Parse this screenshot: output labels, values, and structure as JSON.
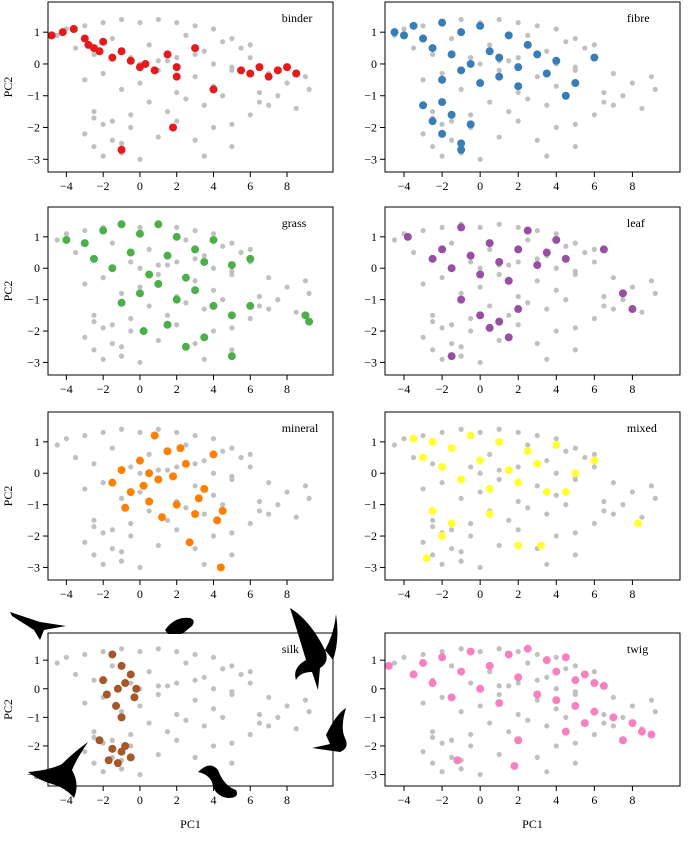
{
  "background_points": {
    "color": "#c0c0c0",
    "x": [
      -4.5,
      -4,
      -3.5,
      -3,
      -2.5,
      -2,
      -1.5,
      -1,
      -0.5,
      0,
      0.5,
      1,
      1.5,
      2,
      2.5,
      3,
      3.5,
      4,
      4.5,
      5,
      5.5,
      6,
      -3,
      -2,
      -1,
      0,
      1,
      2,
      3,
      4,
      5,
      -2.5,
      -1.5,
      -0.5,
      0.5,
      1.5,
      2.5,
      3.5,
      4.5,
      -3,
      -2.5,
      -2,
      -1.5,
      -1,
      -2,
      -1,
      -2.5,
      -0.5,
      0,
      1,
      2,
      3,
      4,
      5,
      6,
      7,
      8,
      9,
      6.5,
      7.5,
      8.5,
      9.2,
      5,
      6,
      7,
      3,
      4,
      5,
      2,
      1,
      0,
      -1,
      3.5,
      6.5
    ],
    "y": [
      0.9,
      1.1,
      0.5,
      1.2,
      0.3,
      1.3,
      0.8,
      1.4,
      0.2,
      1.3,
      0.6,
      1.4,
      0.1,
      1.3,
      0.9,
      1.2,
      0.4,
      1.1,
      0.7,
      0.8,
      0.5,
      0.6,
      -0.5,
      -0.3,
      -0.8,
      -0.6,
      -0.2,
      -0.9,
      -0.4,
      -0.7,
      -0.2,
      -1.5,
      -1.8,
      -2.0,
      -1.2,
      -1.5,
      -1.1,
      -1.3,
      -1.0,
      -2.2,
      -2.6,
      -1.9,
      -2.4,
      -2.8,
      -2.9,
      -2.5,
      -1.7,
      -1.6,
      0.0,
      0.1,
      0.2,
      0.3,
      0.0,
      -0.1,
      0.2,
      -0.3,
      -0.6,
      -0.4,
      -1.2,
      -1.0,
      -1.4,
      -0.8,
      -1.9,
      -1.6,
      -1.3,
      -2.4,
      -2.0,
      -2.6,
      -1.8,
      -2.3,
      -3.0,
      -2.8,
      -2.9,
      -0.9
    ]
  },
  "chart_data": [
    {
      "type": "scatter",
      "ylabel": "PC2",
      "xlim": [
        -5,
        10.5
      ],
      "ylim": [
        -3.4,
        1.95
      ],
      "xticks": [
        {
          "value": -4,
          "label": "−4"
        },
        {
          "value": -2,
          "label": "−2"
        },
        0,
        2,
        4,
        6,
        8
      ],
      "yticks": [
        1,
        0,
        {
          "value": -1,
          "label": "−1"
        },
        {
          "value": -2,
          "label": "−2"
        },
        {
          "value": -3,
          "label": "−3"
        }
      ],
      "series": [
        {
          "name": "binder",
          "color": "#e41a1c",
          "x": [
            -4.8,
            -4.2,
            -3.6,
            -3,
            -2.8,
            -2.5,
            -2.2,
            -2,
            -1.5,
            -1,
            -0.5,
            0,
            0.3,
            0.8,
            1.5,
            2,
            3,
            4,
            5.5,
            6,
            6.5,
            7,
            7.5,
            8,
            8.5,
            2,
            -1,
            1.8
          ],
          "y": [
            0.9,
            1.0,
            1.1,
            0.8,
            0.6,
            0.5,
            0.4,
            0.7,
            0.2,
            0.4,
            0.1,
            -0.1,
            0.0,
            -0.2,
            0.3,
            -0.4,
            0.5,
            -0.8,
            -0.2,
            -0.3,
            -0.1,
            -0.4,
            -0.2,
            -0.1,
            -0.3,
            -0.1,
            -2.7,
            -2.0
          ]
        }
      ]
    },
    {
      "type": "scatter",
      "xlim": [
        -5,
        10.5
      ],
      "ylim": [
        -3.4,
        1.95
      ],
      "xticks": [
        {
          "value": -4,
          "label": "−4"
        },
        {
          "value": -2,
          "label": "−2"
        },
        0,
        2,
        4,
        6,
        8
      ],
      "yticks": [
        1,
        0,
        {
          "value": -1,
          "label": "−1"
        },
        {
          "value": -2,
          "label": "−2"
        },
        {
          "value": -3,
          "label": "−3"
        }
      ],
      "series": [
        {
          "name": "fibre",
          "color": "#377eb8",
          "x": [
            -4.5,
            -4,
            -3.5,
            -3,
            -2.5,
            -2,
            -1.5,
            -1,
            -0.5,
            0,
            0.5,
            1,
            1.5,
            2,
            2.5,
            3,
            3.5,
            4,
            -2,
            -1,
            0,
            1,
            2,
            -3,
            -2.5,
            -2,
            -1.5,
            -1,
            -0.5,
            -2,
            -1,
            4.5,
            5,
            6
          ],
          "y": [
            1.0,
            0.9,
            1.2,
            0.8,
            0.5,
            1.3,
            0.3,
            1.0,
            0.0,
            1.2,
            0.4,
            0.2,
            0.9,
            -0.1,
            0.6,
            0.3,
            -0.3,
            0.1,
            -0.5,
            -0.2,
            -0.6,
            -0.4,
            -0.7,
            -1.3,
            -1.8,
            -2.2,
            -1.6,
            -2.5,
            -1.9,
            -1.2,
            -2.7,
            -1.0,
            -0.6,
            0.2
          ]
        }
      ]
    },
    {
      "type": "scatter",
      "ylabel": "PC2",
      "xlim": [
        -5,
        10.5
      ],
      "ylim": [
        -3.4,
        1.95
      ],
      "xticks": [
        {
          "value": -4,
          "label": "−4"
        },
        {
          "value": -2,
          "label": "−2"
        },
        0,
        2,
        4,
        6,
        8
      ],
      "yticks": [
        1,
        0,
        {
          "value": -1,
          "label": "−1"
        },
        {
          "value": -2,
          "label": "−2"
        },
        {
          "value": -3,
          "label": "−3"
        }
      ],
      "series": [
        {
          "name": "grass",
          "color": "#4daf4a",
          "x": [
            -4,
            -3,
            -2.5,
            -2,
            -1.5,
            -1,
            -0.5,
            0,
            0.5,
            1,
            1.5,
            2,
            2.5,
            3,
            3.5,
            4,
            5,
            6,
            0,
            1,
            2,
            3,
            4,
            5,
            6,
            1.5,
            2.5,
            3.5,
            5,
            9,
            9.2,
            -1,
            0.2
          ],
          "y": [
            0.9,
            0.8,
            0.3,
            1.2,
            0.0,
            1.4,
            0.5,
            1.1,
            -0.2,
            1.4,
            0.4,
            1.0,
            -0.3,
            0.6,
            0.2,
            0.9,
            0.1,
            0.3,
            -0.8,
            -0.5,
            -1.0,
            -0.7,
            -1.2,
            -1.5,
            -1.2,
            -1.8,
            -2.5,
            -2.2,
            -2.8,
            -1.5,
            -1.7,
            -1.1,
            -2.0
          ]
        }
      ]
    },
    {
      "type": "scatter",
      "xlim": [
        -5,
        10.5
      ],
      "ylim": [
        -3.4,
        1.95
      ],
      "xticks": [
        {
          "value": -4,
          "label": "−4"
        },
        {
          "value": -2,
          "label": "−2"
        },
        0,
        2,
        4,
        6,
        8
      ],
      "yticks": [
        1,
        0,
        {
          "value": -1,
          "label": "−1"
        },
        {
          "value": -2,
          "label": "−2"
        },
        {
          "value": -3,
          "label": "−3"
        }
      ],
      "series": [
        {
          "name": "leaf",
          "color": "#984ea3",
          "x": [
            -3.8,
            -2.5,
            -2,
            -1.5,
            -1,
            -0.5,
            0,
            0.5,
            1,
            1.5,
            2,
            2.5,
            3,
            3.5,
            4,
            4.5,
            6.5,
            7.5,
            8,
            -1,
            0,
            1,
            1.5,
            -1.5,
            2,
            0.5
          ],
          "y": [
            1.0,
            0.3,
            0.6,
            0.0,
            1.3,
            0.4,
            -0.2,
            0.8,
            0.2,
            -0.4,
            0.6,
            1.2,
            0.1,
            0.5,
            0.9,
            0.3,
            0.6,
            -0.8,
            -1.3,
            -1.0,
            -1.5,
            -1.7,
            -2.2,
            -2.8,
            -1.3,
            -1.9
          ]
        }
      ]
    },
    {
      "type": "scatter",
      "ylabel": "PC2",
      "xlim": [
        -5,
        10.5
      ],
      "ylim": [
        -3.4,
        1.95
      ],
      "xticks": [
        {
          "value": -4,
          "label": "−4"
        },
        {
          "value": -2,
          "label": "−2"
        },
        0,
        2,
        4,
        6,
        8
      ],
      "yticks": [
        1,
        0,
        {
          "value": -1,
          "label": "−1"
        },
        {
          "value": -2,
          "label": "−2"
        },
        {
          "value": -3,
          "label": "−3"
        }
      ],
      "series": [
        {
          "name": "mineral",
          "color": "#ff7f00",
          "x": [
            -1.5,
            -1,
            -0.5,
            0,
            0.5,
            0.8,
            1,
            1.5,
            2,
            2.5,
            3,
            3.5,
            4,
            4.5,
            -0.8,
            0.2,
            1.2,
            2.2,
            3.2,
            4.2,
            2.7,
            4.4,
            0.5,
            1.8
          ],
          "y": [
            -0.3,
            0.1,
            -0.6,
            0.4,
            -0.9,
            1.2,
            -0.2,
            0.7,
            -1.0,
            0.3,
            -1.3,
            -0.5,
            0.6,
            -1.2,
            -1.1,
            -0.4,
            -1.4,
            0.8,
            -0.8,
            -1.5,
            -2.2,
            -3.0,
            0.0,
            -0.1
          ]
        }
      ]
    },
    {
      "type": "scatter",
      "xlim": [
        -5,
        10.5
      ],
      "ylim": [
        -3.4,
        1.95
      ],
      "xticks": [
        {
          "value": -4,
          "label": "−4"
        },
        {
          "value": -2,
          "label": "−2"
        },
        0,
        2,
        4,
        6,
        8
      ],
      "yticks": [
        1,
        0,
        {
          "value": -1,
          "label": "−1"
        },
        {
          "value": -2,
          "label": "−2"
        },
        {
          "value": -3,
          "label": "−3"
        }
      ],
      "series": [
        {
          "name": "mixed",
          "color": "#ffff33",
          "x": [
            -3.5,
            -3,
            -2.5,
            -2,
            -1.5,
            -1,
            -0.5,
            0,
            0.5,
            1,
            1.5,
            2,
            2.5,
            3,
            3.5,
            4,
            5,
            6,
            -2.5,
            -2,
            -1.5,
            -2.8,
            0.5,
            2,
            3.2,
            8.3,
            4.5
          ],
          "y": [
            1.1,
            0.5,
            1.0,
            0.2,
            0.8,
            -0.2,
            1.2,
            0.4,
            -0.5,
            1.0,
            0.1,
            -0.3,
            0.7,
            0.3,
            -0.6,
            0.9,
            0.0,
            0.4,
            -1.2,
            -2.0,
            -1.6,
            -2.7,
            -1.3,
            -2.3,
            -2.3,
            -1.6,
            -0.6
          ]
        }
      ]
    },
    {
      "type": "scatter",
      "xlabel": "PC1",
      "ylabel": "PC2",
      "xlim": [
        -5,
        10.5
      ],
      "ylim": [
        -3.4,
        1.95
      ],
      "xticks": [
        {
          "value": -4,
          "label": "−4"
        },
        {
          "value": -2,
          "label": "−2"
        },
        0,
        2,
        4,
        6,
        8
      ],
      "yticks": [
        1,
        0,
        {
          "value": -1,
          "label": "−1"
        },
        {
          "value": -2,
          "label": "−2"
        },
        {
          "value": -3,
          "label": "−3"
        }
      ],
      "series": [
        {
          "name": "silk",
          "color": "#a65628",
          "x": [
            -1.5,
            -1,
            -2,
            -1.2,
            -0.5,
            -1.8,
            -0.8,
            -1.3,
            -0.3,
            -1,
            -2.2,
            -1.5,
            -0.8,
            -1.7,
            -1.2,
            -0.5,
            -1,
            -0.2
          ],
          "y": [
            1.2,
            0.8,
            0.3,
            0.0,
            0.5,
            -0.2,
            0.2,
            -0.6,
            -0.3,
            -1.0,
            -1.8,
            -2.1,
            -2.0,
            -2.5,
            -2.6,
            -2.4,
            -2.2,
            0.0
          ]
        }
      ]
    },
    {
      "type": "scatter",
      "xlabel": "PC1",
      "xlim": [
        -5,
        10.5
      ],
      "ylim": [
        -3.4,
        1.95
      ],
      "xticks": [
        {
          "value": -4,
          "label": "−4"
        },
        {
          "value": -2,
          "label": "−2"
        },
        0,
        2,
        4,
        6,
        8
      ],
      "yticks": [
        1,
        0,
        {
          "value": -1,
          "label": "−1"
        },
        {
          "value": -2,
          "label": "−2"
        },
        {
          "value": -3,
          "label": "−3"
        }
      ],
      "series": [
        {
          "name": "twig",
          "color": "#f781bf",
          "x": [
            -4.8,
            -3.5,
            -3,
            -2.5,
            -2,
            -1.5,
            -1,
            -0.5,
            0,
            0.5,
            1,
            1.5,
            2,
            2.5,
            3,
            3.5,
            4,
            4.5,
            5,
            5.5,
            6,
            6.5,
            4,
            5,
            6,
            7,
            8,
            8.5,
            9,
            4.5,
            5.5,
            7.5,
            -1.2,
            1.8,
            2
          ],
          "y": [
            0.8,
            0.5,
            0.9,
            0.2,
            1.1,
            -0.3,
            0.6,
            1.3,
            0.0,
            0.8,
            -0.5,
            1.2,
            0.4,
            1.4,
            -0.2,
            1.0,
            0.6,
            1.1,
            0.3,
            0.5,
            0.2,
            0.1,
            -0.4,
            -0.6,
            -0.8,
            -1.0,
            -1.2,
            -1.5,
            -1.6,
            -1.5,
            -1.2,
            -1.8,
            -2.5,
            -2.7,
            -1.8
          ]
        }
      ]
    }
  ]
}
